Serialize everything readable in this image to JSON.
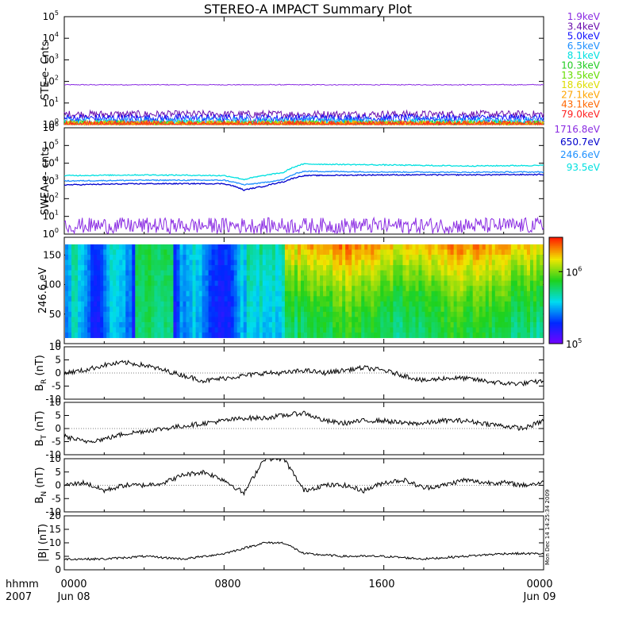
{
  "title": "STEREO-A IMPACT Summary Plot",
  "stamp": "Mon Dec 14 14:25:34 2009",
  "footer": {
    "time_label": "hhmm",
    "year_label": "2007",
    "ticks": [
      "0000",
      "0800",
      "1600",
      "0000"
    ],
    "dates": [
      "Jun 08",
      "Jun 09"
    ]
  },
  "colors": {
    "purple": "#8a2be2",
    "violet": "#6a0dad",
    "blue": "#1010ff",
    "deepblue": "#0000cd",
    "lightblue": "#1e90ff",
    "cyan": "#00e0e0",
    "aqua": "#40e0d0",
    "green": "#22cc22",
    "lime": "#66dd00",
    "yellow": "#dddd00",
    "orange": "#ffa500",
    "orangered": "#ff6600",
    "red": "#ff2222",
    "black": "#000000"
  },
  "chart_data": [
    {
      "id": "ste",
      "type": "line",
      "ylabel": "STE e- Cnts",
      "yscale": "log",
      "ylim": [
        1,
        100000
      ],
      "ytick_exponents": [
        "0",
        "1",
        "2",
        "3",
        "4",
        "5"
      ],
      "xlim_hours": [
        0,
        24
      ],
      "series": [
        {
          "name": "1.9keV",
          "color": "#8a2be2",
          "values": [
            70,
            70,
            70,
            70,
            70
          ]
        },
        {
          "name": "3.4keV",
          "color": "#6a0dad",
          "values": [
            3,
            3,
            3,
            3,
            3
          ]
        },
        {
          "name": "5.0keV",
          "color": "#1010ff",
          "values": [
            2,
            2,
            2,
            2,
            2
          ]
        },
        {
          "name": "6.5keV",
          "color": "#1e90ff",
          "values": [
            1.5,
            1.5,
            1.5,
            1.5,
            1.5
          ]
        },
        {
          "name": "8.1keV",
          "color": "#00e0e0",
          "values": [
            1.2,
            1.2,
            1.2,
            1.2,
            1.2
          ]
        },
        {
          "name": "10.3keV",
          "color": "#22cc22",
          "values": [
            1,
            1,
            1,
            1,
            1
          ]
        },
        {
          "name": "13.5keV",
          "color": "#66dd00",
          "values": [
            1,
            1,
            1,
            1,
            1
          ]
        },
        {
          "name": "18.6keV",
          "color": "#dddd00",
          "values": [
            1,
            1,
            1,
            1,
            1
          ]
        },
        {
          "name": "27.1keV",
          "color": "#ffa500",
          "values": [
            1,
            1,
            1,
            1,
            1
          ]
        },
        {
          "name": "43.1keV",
          "color": "#ff6600",
          "values": [
            1,
            1,
            1,
            1,
            1
          ]
        },
        {
          "name": "79.0keV",
          "color": "#ff2222",
          "values": [
            1,
            1,
            1,
            1,
            1
          ]
        }
      ]
    },
    {
      "id": "swea",
      "type": "line",
      "ylabel": "SWEA e- cnts",
      "yscale": "log",
      "ylim": [
        1,
        1000000
      ],
      "ytick_exponents": [
        "0",
        "1",
        "2",
        "3",
        "4",
        "5",
        "6"
      ],
      "xlim_hours": [
        0,
        24
      ],
      "series": [
        {
          "name": "1716.8eV",
          "color": "#8a2be2",
          "x": [
            0,
            24
          ],
          "values": [
            3,
            3
          ]
        },
        {
          "name": "650.7eV",
          "color": "#0000cd",
          "x": [
            0,
            4,
            8,
            9,
            10,
            11,
            12,
            16,
            20,
            24
          ],
          "values": [
            600,
            700,
            700,
            300,
            500,
            900,
            2000,
            2200,
            2200,
            2300
          ]
        },
        {
          "name": "246.6eV",
          "color": "#1e90ff",
          "x": [
            0,
            4,
            8,
            9,
            10,
            11,
            12,
            16,
            20,
            24
          ],
          "values": [
            1000,
            1100,
            1100,
            600,
            800,
            1200,
            3500,
            3200,
            3100,
            3200
          ]
        },
        {
          "name": "93.5eV",
          "color": "#00e0e0",
          "x": [
            0,
            4,
            8,
            9,
            10,
            11,
            12,
            16,
            20,
            24
          ],
          "values": [
            2000,
            2200,
            2000,
            1200,
            2000,
            3000,
            9000,
            8000,
            7000,
            7500
          ]
        }
      ]
    },
    {
      "id": "pad",
      "type": "heatmap",
      "ylabel": "246.6 eV",
      "ylim": [
        0,
        180
      ],
      "yticks": [
        "0",
        "50",
        "100",
        "150"
      ],
      "colorbar": {
        "scale": "log",
        "tick_exponents": [
          "5",
          "6"
        ],
        "range": [
          100000,
          3000000
        ]
      },
      "note": "Pitch-angle distribution; level shown by color"
    },
    {
      "id": "br",
      "type": "line",
      "ylabel_main": "B",
      "ylabel_sub": "R",
      "ylabel_unit": "(nT)",
      "ylim": [
        -10,
        10
      ],
      "yticks": [
        "-10",
        "-5",
        "0",
        "5",
        "10"
      ],
      "xlim_hours": [
        0,
        24
      ],
      "x": [
        0,
        1,
        2,
        3,
        4,
        5,
        6,
        7,
        8,
        9,
        10,
        11,
        12,
        13,
        14,
        15,
        16,
        17,
        18,
        19,
        20,
        21,
        22,
        23,
        24
      ],
      "values": [
        0,
        1,
        3,
        4,
        3,
        1,
        -1,
        -3,
        -2,
        -1,
        0,
        0,
        1,
        0,
        1,
        2,
        1,
        -1,
        -3,
        -2,
        -2,
        -3,
        -4,
        -4,
        -3
      ]
    },
    {
      "id": "bt",
      "type": "line",
      "ylabel_main": "B",
      "ylabel_sub": "T",
      "ylabel_unit": "(nT)",
      "ylim": [
        -10,
        10
      ],
      "yticks": [
        "-10",
        "-5",
        "0",
        "5",
        "10"
      ],
      "xlim_hours": [
        0,
        24
      ],
      "x": [
        0,
        1,
        2,
        3,
        4,
        5,
        6,
        7,
        8,
        9,
        10,
        11,
        12,
        13,
        14,
        15,
        16,
        17,
        18,
        19,
        20,
        21,
        22,
        23,
        24
      ],
      "values": [
        -3,
        -5,
        -4,
        -2,
        -1,
        0,
        1,
        2,
        3,
        4,
        4,
        5,
        6,
        3,
        2,
        3,
        3,
        2,
        2,
        3,
        3,
        2,
        1,
        0,
        3
      ]
    },
    {
      "id": "bn",
      "type": "line",
      "ylabel_main": "B",
      "ylabel_sub": "N",
      "ylabel_unit": "(nT)",
      "ylim": [
        -10,
        10
      ],
      "yticks": [
        "-10",
        "-5",
        "0",
        "5",
        "10"
      ],
      "xlim_hours": [
        0,
        24
      ],
      "x": [
        0,
        1,
        2,
        3,
        4,
        5,
        6,
        7,
        8,
        9,
        10,
        11,
        12,
        13,
        14,
        15,
        16,
        17,
        18,
        19,
        20,
        21,
        22,
        23,
        24
      ],
      "values": [
        0,
        1,
        -2,
        0,
        0,
        1,
        4,
        5,
        2,
        -3,
        10,
        10,
        -2,
        0,
        0,
        -2,
        1,
        2,
        -1,
        0,
        2,
        1,
        1,
        0,
        1
      ]
    },
    {
      "id": "bmag",
      "type": "line",
      "ylabel": "|B| (nT)",
      "ylim": [
        0,
        20
      ],
      "yticks": [
        "0",
        "5",
        "10",
        "15",
        "20"
      ],
      "xlim_hours": [
        0,
        24
      ],
      "x": [
        0,
        2,
        4,
        6,
        7,
        8,
        9,
        10,
        11,
        12,
        14,
        16,
        18,
        20,
        22,
        24
      ],
      "values": [
        4,
        4,
        5,
        4,
        5,
        6,
        8,
        10,
        10,
        6,
        5,
        5,
        4,
        5,
        6,
        6
      ]
    }
  ]
}
